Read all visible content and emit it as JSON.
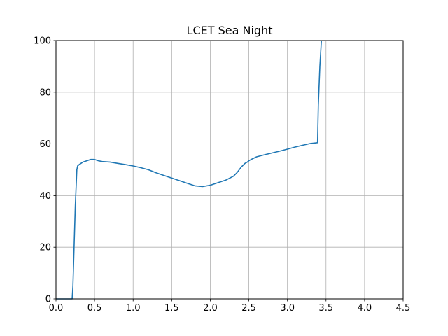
{
  "chart_data": {
    "type": "line",
    "title": "LCET Sea Night",
    "xlabel": "",
    "ylabel": "",
    "xlim": [
      0,
      4.5
    ],
    "ylim": [
      0,
      100
    ],
    "x_ticks": [
      0.0,
      0.5,
      1.0,
      1.5,
      2.0,
      2.5,
      3.0,
      3.5,
      4.0,
      4.5
    ],
    "x_tick_labels": [
      "0.0",
      "0.5",
      "1.0",
      "1.5",
      "2.0",
      "2.5",
      "3.0",
      "3.5",
      "4.0",
      "4.5"
    ],
    "y_ticks": [
      0,
      20,
      40,
      60,
      80,
      100
    ],
    "y_tick_labels": [
      "0",
      "20",
      "40",
      "60",
      "80",
      "100"
    ],
    "grid": true,
    "line_color": "#1f77b4",
    "series": [
      {
        "x": [
          0.0,
          0.21,
          0.22,
          0.25,
          0.27,
          0.28,
          0.3,
          0.35,
          0.4,
          0.45,
          0.5,
          0.55,
          0.6,
          0.7,
          0.8,
          0.9,
          1.0,
          1.1,
          1.2,
          1.3,
          1.4,
          1.5,
          1.6,
          1.7,
          1.8,
          1.9,
          2.0,
          2.1,
          2.2,
          2.3,
          2.35,
          2.4,
          2.45,
          2.48,
          2.5,
          2.55,
          2.6,
          2.7,
          2.8,
          2.9,
          3.0,
          3.1,
          3.2,
          3.3,
          3.39,
          3.4,
          3.42,
          3.44
        ],
        "y": [
          0,
          0,
          5,
          36,
          50,
          51.5,
          52,
          53,
          53.5,
          54,
          54,
          53.5,
          53.2,
          53,
          52.5,
          52,
          51.5,
          50.8,
          50,
          48.8,
          47.8,
          46.8,
          45.8,
          44.8,
          43.8,
          43.5,
          44,
          45,
          46,
          47.5,
          49,
          51,
          52.5,
          53,
          53.5,
          54.3,
          55,
          55.8,
          56.5,
          57.2,
          58,
          58.8,
          59.5,
          60.2,
          60.5,
          75,
          90,
          100
        ]
      }
    ]
  }
}
